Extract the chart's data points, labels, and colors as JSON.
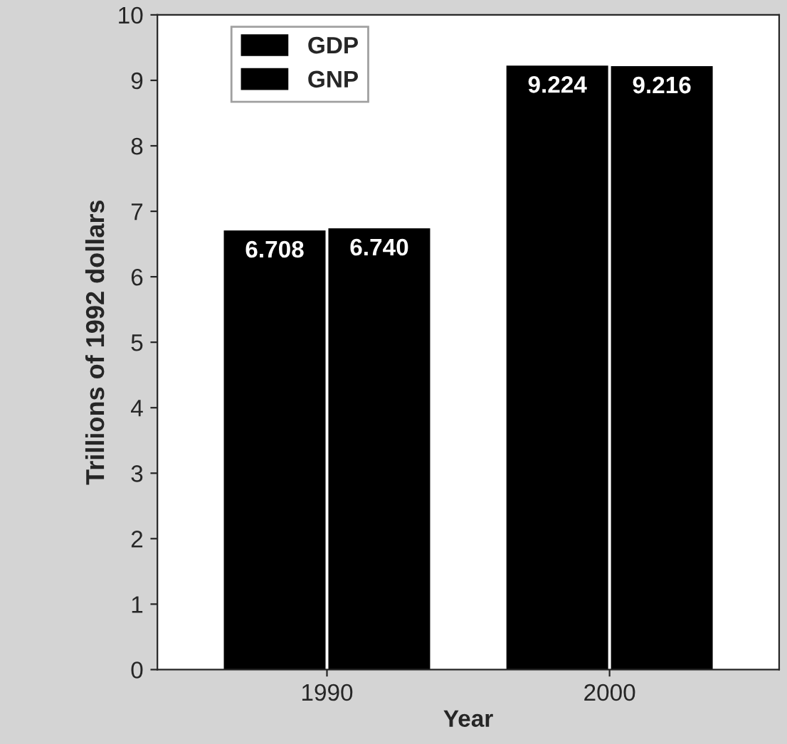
{
  "chart_data": {
    "type": "bar",
    "xlabel": "Year",
    "ylabel": "Trillions of 1992 dollars",
    "categories": [
      "1990",
      "2000"
    ],
    "series": [
      {
        "name": "GDP",
        "color": "#000000",
        "values": [
          6.708,
          9.224
        ],
        "value_labels": [
          "6.708",
          "9.224"
        ]
      },
      {
        "name": "GNP",
        "color": "#000000",
        "values": [
          6.74,
          9.216
        ],
        "value_labels": [
          "6.740",
          "9.216"
        ]
      }
    ],
    "ylim": [
      0,
      10
    ],
    "yticks": [
      0,
      1,
      2,
      3,
      4,
      5,
      6,
      7,
      8,
      9,
      10
    ],
    "grid": false,
    "legend": "top left"
  }
}
